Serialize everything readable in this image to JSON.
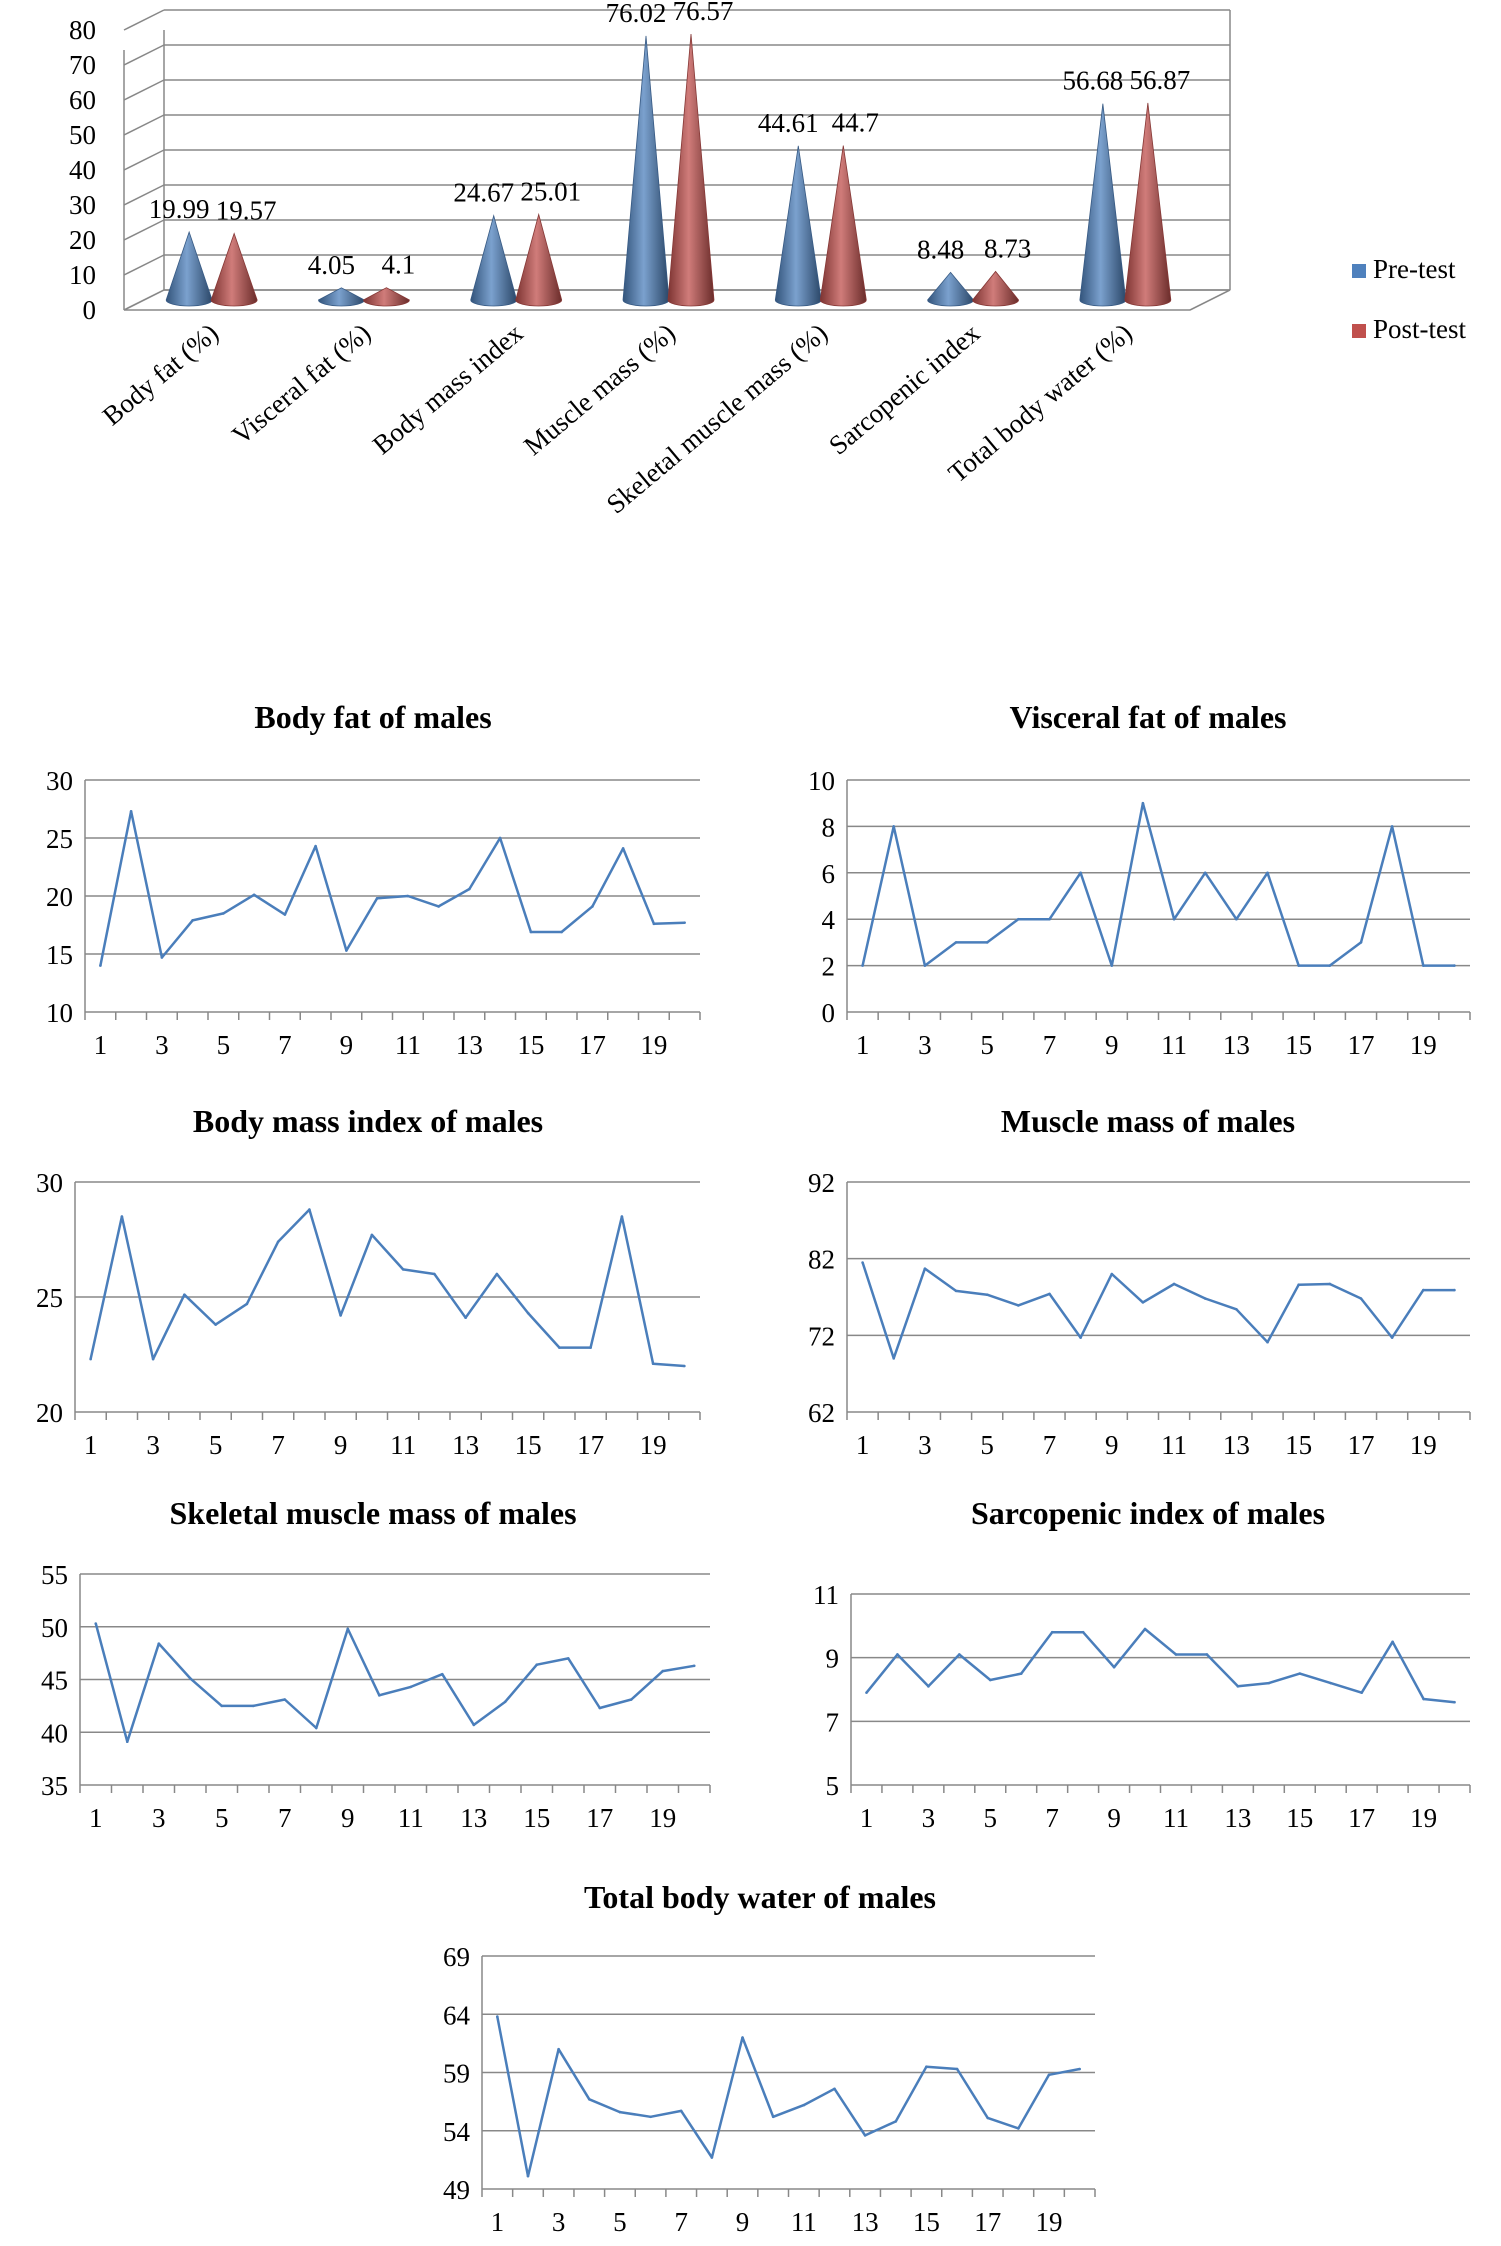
{
  "chart_data": [
    {
      "type": "bar",
      "style": "3d-cone",
      "categories": [
        "Body fat (%)",
        "Visceral fat (%)",
        "Body mass index",
        "Muscle mass (%)",
        "Skeletal muscle mass (%)",
        "Sarcopenic index",
        "Total body water (%)"
      ],
      "series": [
        {
          "name": "Pre-test",
          "color": "#4f81bd",
          "values": [
            19.99,
            4.05,
            24.67,
            76.02,
            44.61,
            8.48,
            56.68
          ],
          "labels": [
            "19.99",
            "4.05",
            "24.67",
            "76.02",
            "44.61",
            "8.48",
            "56.68"
          ]
        },
        {
          "name": "Post-test",
          "color": "#c0504d",
          "values": [
            19.57,
            4.1,
            25.01,
            76.57,
            44.7,
            8.73,
            56.87
          ],
          "labels": [
            "19.57",
            "4.1",
            "25.01",
            "76.57",
            "44.7",
            "8.73",
            "56.87"
          ]
        }
      ],
      "ylim": [
        0,
        80
      ],
      "yticks": [
        "0",
        "10",
        "20",
        "30",
        "40",
        "50",
        "60",
        "70",
        "80"
      ],
      "grid": true,
      "legend": "right"
    },
    {
      "type": "line",
      "title": "Body fat of males",
      "color": "#4a7ebb",
      "x": [
        1,
        2,
        3,
        4,
        5,
        6,
        7,
        8,
        9,
        10,
        11,
        12,
        13,
        14,
        15,
        16,
        17,
        18,
        19,
        20
      ],
      "xticks": [
        "1",
        "3",
        "5",
        "7",
        "9",
        "11",
        "13",
        "15",
        "17",
        "19"
      ],
      "values": [
        14.0,
        27.3,
        14.7,
        17.9,
        18.5,
        20.1,
        18.4,
        24.3,
        15.3,
        19.8,
        20.0,
        19.1,
        20.6,
        25.0,
        16.9,
        16.9,
        19.1,
        24.1,
        17.6,
        17.7
      ],
      "ylim": [
        10,
        30
      ],
      "yticks": [
        "10",
        "15",
        "20",
        "25",
        "30"
      ]
    },
    {
      "type": "line",
      "title": "Visceral fat of males",
      "color": "#4a7ebb",
      "x": [
        1,
        2,
        3,
        4,
        5,
        6,
        7,
        8,
        9,
        10,
        11,
        12,
        13,
        14,
        15,
        16,
        17,
        18,
        19,
        20
      ],
      "xticks": [
        "1",
        "3",
        "5",
        "7",
        "9",
        "11",
        "13",
        "15",
        "17",
        "19"
      ],
      "values": [
        2,
        8,
        2,
        3,
        3,
        4,
        4,
        6,
        2,
        9,
        4,
        6,
        4,
        6,
        2,
        2,
        3,
        8,
        2,
        2
      ],
      "ylim": [
        0,
        10
      ],
      "yticks": [
        "0",
        "2",
        "4",
        "6",
        "8",
        "10"
      ]
    },
    {
      "type": "line",
      "title": "Body mass index of males",
      "color": "#4a7ebb",
      "x": [
        1,
        2,
        3,
        4,
        5,
        6,
        7,
        8,
        9,
        10,
        11,
        12,
        13,
        14,
        15,
        16,
        17,
        18,
        19,
        20
      ],
      "xticks": [
        "1",
        "3",
        "5",
        "7",
        "9",
        "11",
        "13",
        "15",
        "17",
        "19"
      ],
      "values": [
        22.3,
        28.5,
        22.3,
        25.1,
        23.8,
        24.7,
        27.4,
        28.8,
        24.2,
        27.7,
        26.2,
        26.0,
        24.1,
        26.0,
        24.3,
        22.8,
        22.8,
        28.5,
        22.1,
        22.0
      ],
      "ylim": [
        20,
        30
      ],
      "yticks": [
        "20",
        "25",
        "30"
      ]
    },
    {
      "type": "line",
      "title": "Muscle mass of males",
      "color": "#4a7ebb",
      "x": [
        1,
        2,
        3,
        4,
        5,
        6,
        7,
        8,
        9,
        10,
        11,
        12,
        13,
        14,
        15,
        16,
        17,
        18,
        19,
        20
      ],
      "xticks": [
        "1",
        "3",
        "5",
        "7",
        "9",
        "11",
        "13",
        "15",
        "17",
        "19"
      ],
      "values": [
        81.5,
        69.0,
        80.7,
        77.8,
        77.3,
        75.9,
        77.4,
        71.7,
        80.0,
        76.3,
        78.7,
        76.8,
        75.4,
        71.1,
        78.6,
        78.7,
        76.8,
        71.7,
        77.9,
        77.9
      ],
      "ylim": [
        62,
        92
      ],
      "yticks": [
        "62",
        "72",
        "82",
        "92"
      ]
    },
    {
      "type": "line",
      "title": "Skeletal muscle mass of males",
      "color": "#4a7ebb",
      "x": [
        1,
        2,
        3,
        4,
        5,
        6,
        7,
        8,
        9,
        10,
        11,
        12,
        13,
        14,
        15,
        16,
        17,
        18,
        19,
        20
      ],
      "xticks": [
        "1",
        "3",
        "5",
        "7",
        "9",
        "11",
        "13",
        "15",
        "17",
        "19"
      ],
      "values": [
        50.3,
        39.1,
        48.4,
        45.1,
        42.5,
        42.5,
        43.1,
        40.4,
        49.8,
        43.5,
        44.3,
        45.5,
        40.7,
        42.9,
        46.4,
        47.0,
        42.3,
        43.1,
        45.8,
        46.3
      ],
      "ylim": [
        35,
        55
      ],
      "yticks": [
        "35",
        "40",
        "45",
        "50",
        "55"
      ]
    },
    {
      "type": "line",
      "title": "Sarcopenic index of males",
      "color": "#4a7ebb",
      "x": [
        1,
        2,
        3,
        4,
        5,
        6,
        7,
        8,
        9,
        10,
        11,
        12,
        13,
        14,
        15,
        16,
        17,
        18,
        19,
        20
      ],
      "xticks": [
        "1",
        "3",
        "5",
        "7",
        "9",
        "11",
        "13",
        "15",
        "17",
        "19"
      ],
      "values": [
        7.9,
        9.1,
        8.1,
        9.1,
        8.3,
        8.5,
        9.8,
        9.8,
        8.7,
        9.9,
        9.1,
        9.1,
        8.1,
        8.2,
        8.5,
        8.2,
        7.9,
        9.5,
        7.7,
        7.6
      ],
      "ylim": [
        5,
        11
      ],
      "yticks": [
        "5",
        "7",
        "9",
        "11"
      ]
    },
    {
      "type": "line",
      "title": "Total body water of males",
      "color": "#4a7ebb",
      "x": [
        1,
        2,
        3,
        4,
        5,
        6,
        7,
        8,
        9,
        10,
        11,
        12,
        13,
        14,
        15,
        16,
        17,
        18,
        19,
        20
      ],
      "xticks": [
        "1",
        "3",
        "5",
        "7",
        "9",
        "11",
        "13",
        "15",
        "17",
        "19"
      ],
      "values": [
        63.8,
        50.1,
        61.0,
        56.7,
        55.6,
        55.2,
        55.7,
        51.7,
        62.0,
        55.2,
        56.2,
        57.6,
        53.6,
        54.8,
        59.5,
        59.3,
        55.1,
        54.2,
        58.8,
        59.3
      ],
      "ylim": [
        49,
        69
      ],
      "yticks": [
        "49",
        "54",
        "59",
        "64",
        "69"
      ]
    }
  ]
}
